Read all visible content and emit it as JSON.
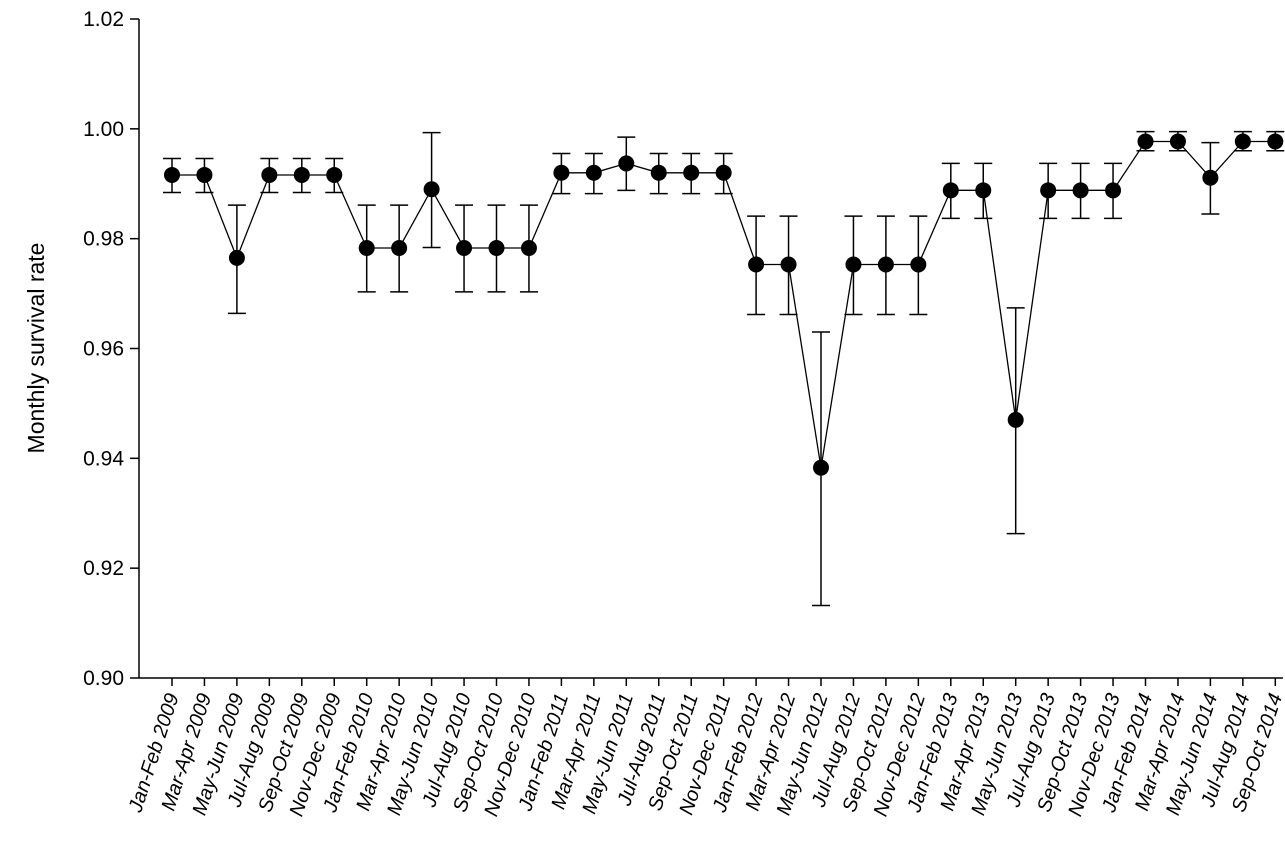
{
  "chart_data": {
    "type": "line",
    "title": "",
    "xlabel": "",
    "ylabel": "Monthly survival rate",
    "ylim": [
      0.9,
      1.02
    ],
    "yticks": [
      "0.90",
      "0.92",
      "0.94",
      "0.96",
      "0.98",
      "1.00",
      "1.02"
    ],
    "ytick_values": [
      0.9,
      0.92,
      0.94,
      0.96,
      0.98,
      1.0,
      1.02
    ],
    "grid": false,
    "legend": "none",
    "categories": [
      "Jan-Feb 2009",
      "Mar-Apr 2009",
      "May-Jun 2009",
      "Jul-Aug 2009",
      "Sep-Oct 2009",
      "Nov-Dec 2009",
      "Jan-Feb 2010",
      "Mar-Apr 2010",
      "May-Jun 2010",
      "Jul-Aug 2010",
      "Sep-Oct 2010",
      "Nov-Dec 2010",
      "Jan-Feb 2011",
      "Mar-Apr 2011",
      "May-Jun 2011",
      "Jul-Aug 2011",
      "Sep-Oct 2011",
      "Nov-Dec 2011",
      "Jan-Feb 2012",
      "Mar-Apr 2012",
      "May-Jun 2012",
      "Jul-Aug 2012",
      "Sep-Oct 2012",
      "Nov-Dec 2012",
      "Jan-Feb 2013",
      "Mar-Apr 2013",
      "May-Jun 2013",
      "Jul-Aug 2013",
      "Sep-Oct 2013",
      "Nov-Dec 2013",
      "Jan-Feb 2014",
      "Mar-Apr 2014",
      "May-Jun 2014",
      "Jul-Aug 2014",
      "Sep-Oct 2014"
    ],
    "values": [
      0.9916,
      0.9916,
      0.9765,
      0.9916,
      0.9916,
      0.9916,
      0.9783,
      0.9783,
      0.989,
      0.9783,
      0.9783,
      0.9783,
      0.992,
      0.992,
      0.9937,
      0.992,
      0.992,
      0.992,
      0.9753,
      0.9753,
      0.9383,
      0.9753,
      0.9753,
      0.9753,
      0.9888,
      0.9888,
      0.947,
      0.9888,
      0.9888,
      0.9888,
      0.9977,
      0.9977,
      0.9911,
      0.9977,
      0.9977
    ],
    "upper": [
      0.9946,
      0.9946,
      0.9861,
      0.9946,
      0.9946,
      0.9946,
      0.9861,
      0.9861,
      0.9993,
      0.9861,
      0.9861,
      0.9861,
      0.9955,
      0.9955,
      0.9985,
      0.9955,
      0.9955,
      0.9955,
      0.9841,
      0.9841,
      0.963,
      0.9841,
      0.9841,
      0.9841,
      0.9937,
      0.9937,
      0.9674,
      0.9937,
      0.9937,
      0.9937,
      0.9995,
      0.9995,
      0.9975,
      0.9995,
      0.9995
    ],
    "lower": [
      0.9884,
      0.9884,
      0.9664,
      0.9884,
      0.9884,
      0.9884,
      0.9703,
      0.9703,
      0.9784,
      0.9703,
      0.9703,
      0.9703,
      0.9882,
      0.9882,
      0.9888,
      0.9882,
      0.9882,
      0.9882,
      0.9662,
      0.9662,
      0.9132,
      0.9662,
      0.9662,
      0.9662,
      0.9837,
      0.9837,
      0.9263,
      0.9837,
      0.9837,
      0.9837,
      0.996,
      0.996,
      0.9845,
      0.996,
      0.996
    ],
    "colors": {
      "line": "#000000",
      "marker": "#000000"
    }
  }
}
